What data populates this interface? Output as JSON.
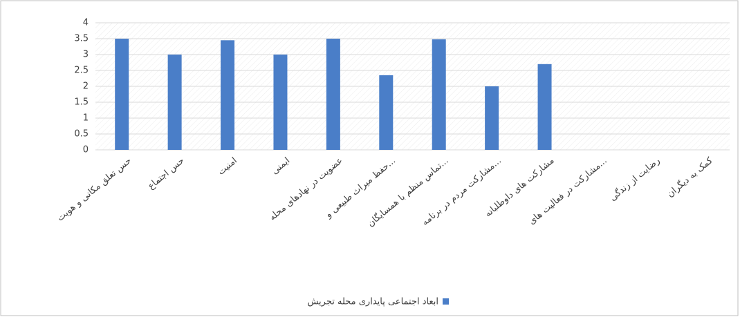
{
  "chart_data": {
    "type": "bar",
    "categories": [
      "حس تعلق مکانی و هویت",
      "حس اجتماع",
      "امنیت",
      "ایمنی",
      "عضویت در نهادهای محله",
      "حفظ میراث طبیعی و...",
      "تماس منظم با همسایگان...",
      "مشارکت مردم در برنامه...",
      "مشارکت های داوطلبانه",
      "مشارکت در فعالیت های...",
      "رضایت از زندگی",
      "کمک به دیگران"
    ],
    "series": [
      {
        "name": "ابعاد اجتماعی پایداری محله تجریش",
        "color": "#4a7ec8",
        "values": [
          3.5,
          3.0,
          3.45,
          3.0,
          3.5,
          2.35,
          3.48,
          2.0,
          2.7,
          null,
          null,
          null
        ]
      }
    ],
    "ylim": [
      0,
      4
    ],
    "yticks": [
      0,
      0.5,
      1,
      1.5,
      2,
      2.5,
      3,
      3.5,
      4
    ],
    "grid": true,
    "legend": "bottom"
  }
}
